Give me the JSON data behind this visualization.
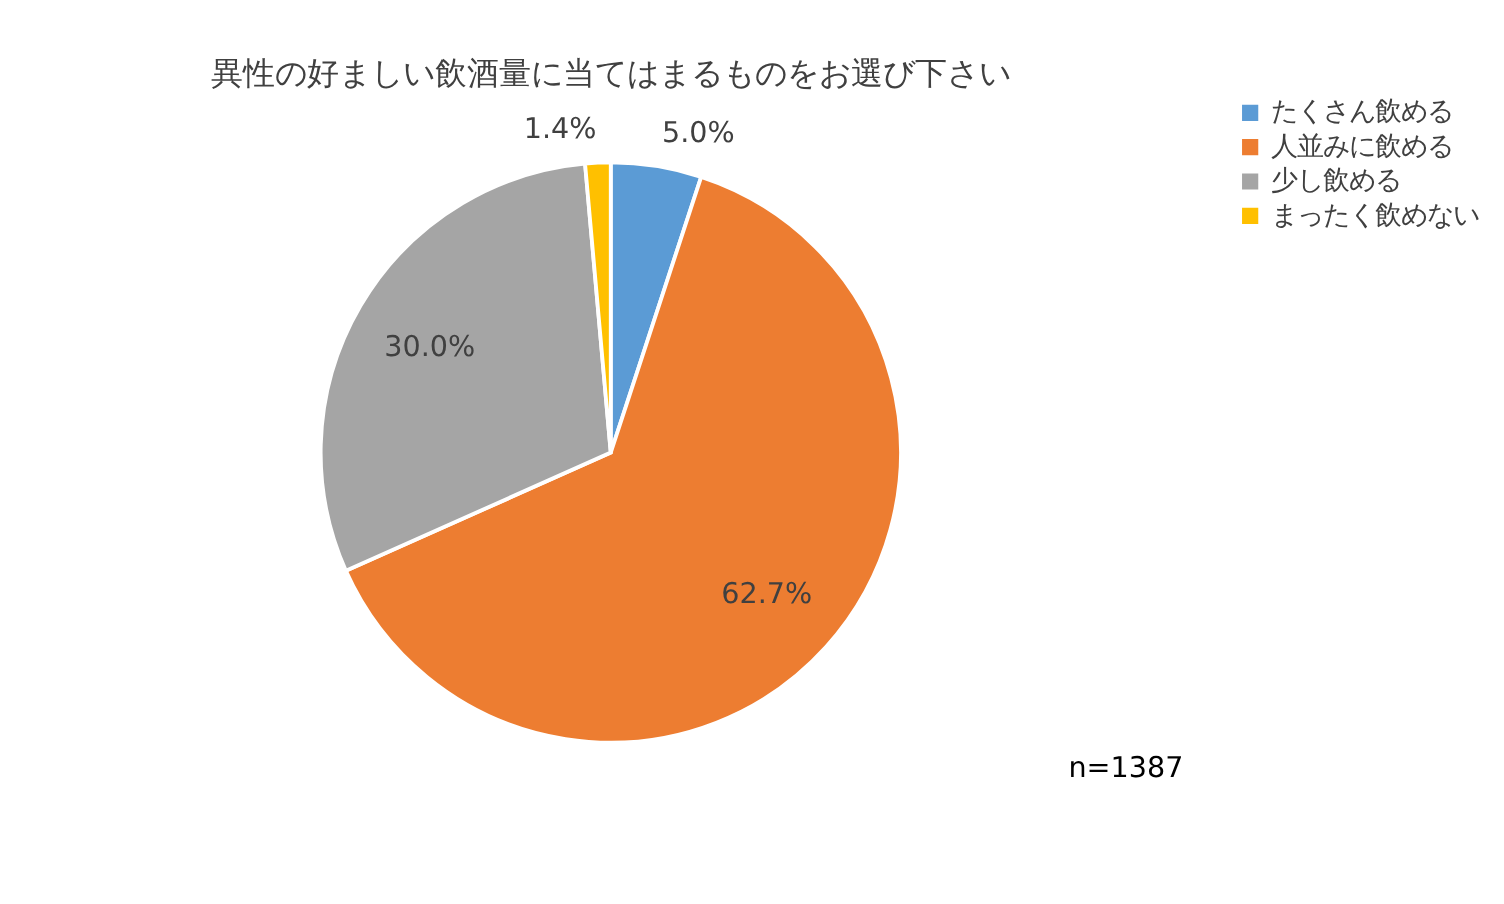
{
  "chart_data": {
    "type": "pie",
    "title": "異性の好ましい飲酒量に当てはまるものをお選び下さい",
    "categories": [
      "たくさん飲める",
      "人並みに飲める",
      "少し飲める",
      "まったく飲めない"
    ],
    "values": [
      5.0,
      62.7,
      30.0,
      1.4
    ],
    "colors": [
      "#5b9bd5",
      "#ed7d31",
      "#a5a5a5",
      "#ffc000"
    ],
    "value_labels": [
      "5.0%",
      "62.7%",
      "30.0%",
      "1.4%"
    ],
    "legend": "right",
    "annotations": [
      "n=1387"
    ]
  }
}
